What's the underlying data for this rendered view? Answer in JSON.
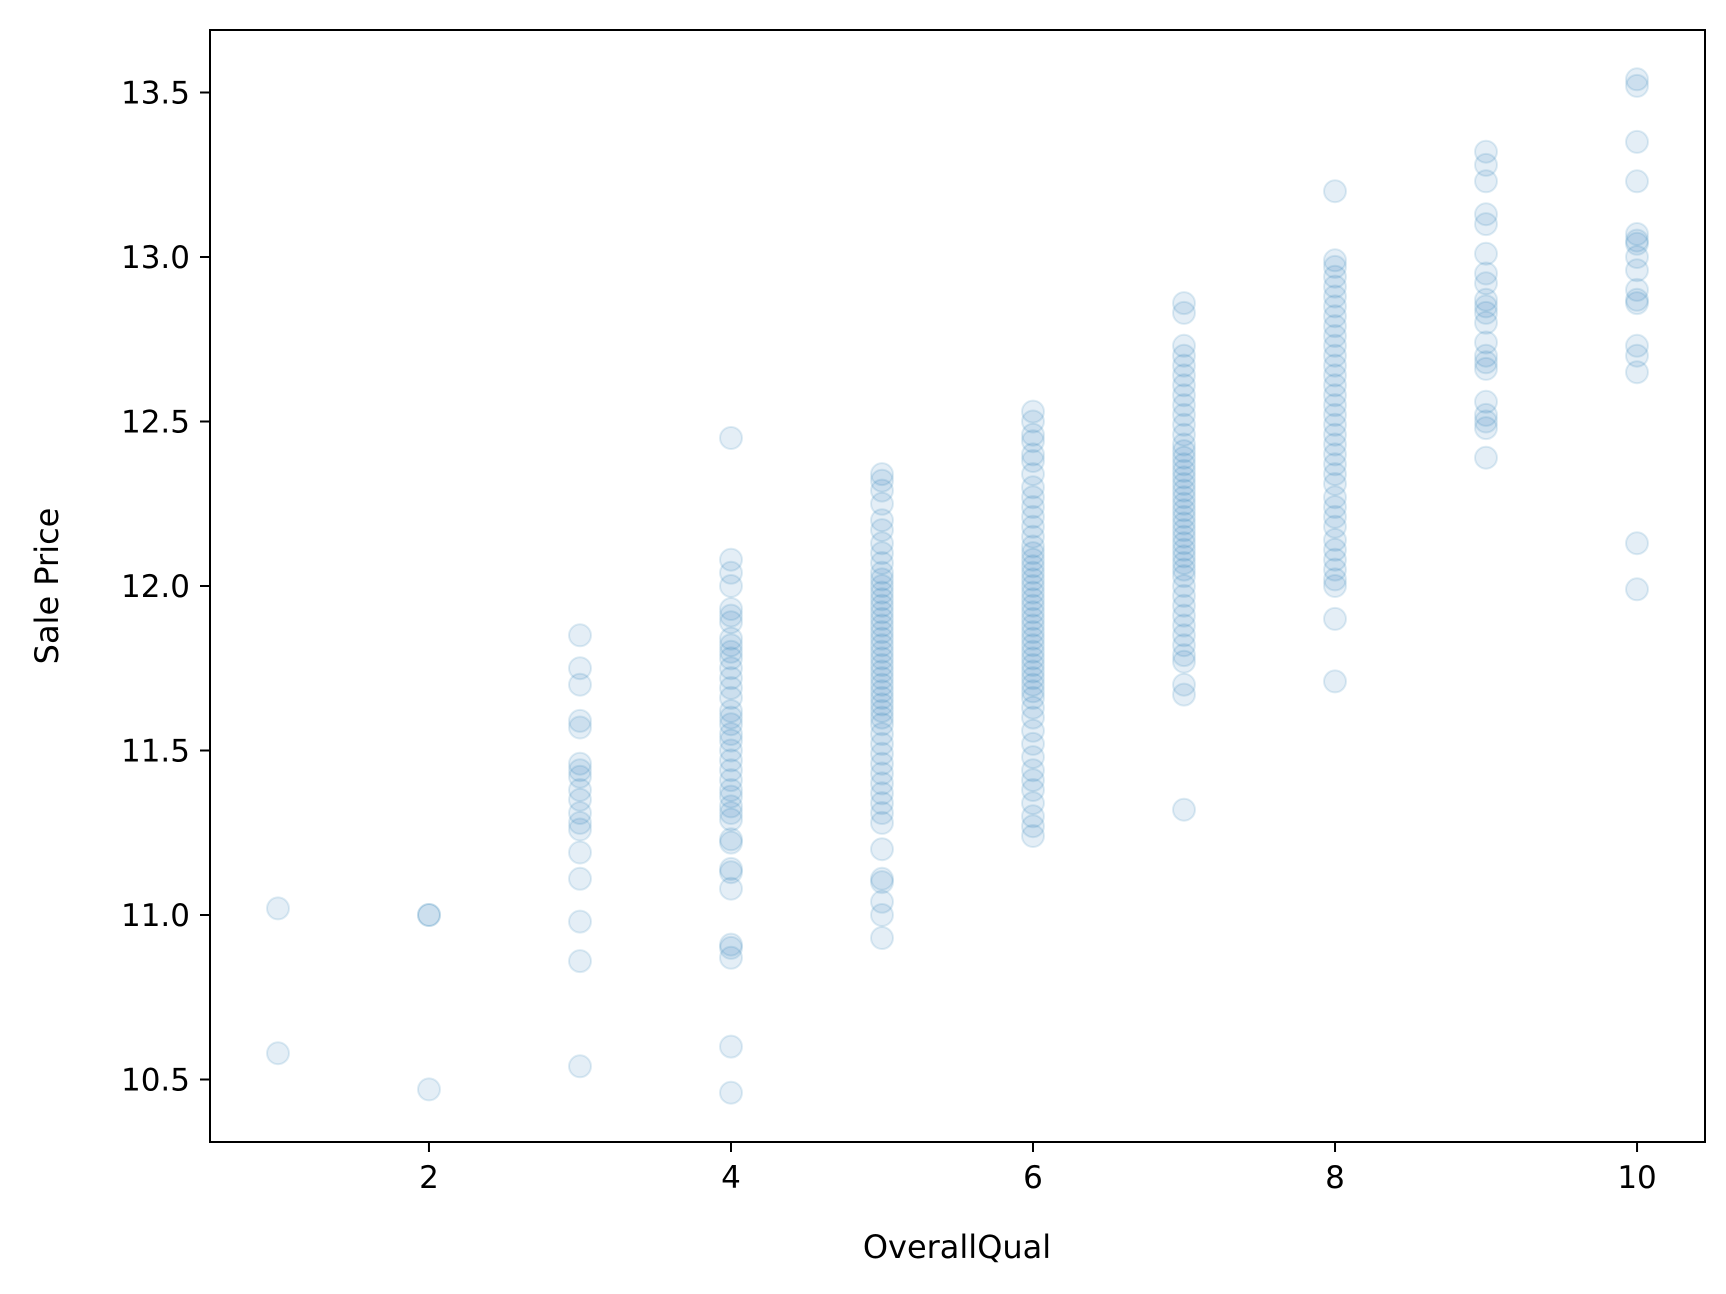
{
  "chart_data": {
    "type": "scatter",
    "title": "",
    "xlabel": "OverallQual",
    "ylabel": "Sale Price",
    "xlim": [
      0.55,
      10.45
    ],
    "ylim": [
      10.31,
      13.69
    ],
    "xticks": [
      2,
      4,
      6,
      8,
      10
    ],
    "yticks": [
      10.5,
      11.0,
      11.5,
      12.0,
      12.5,
      13.0,
      13.5
    ],
    "ytick_labels": [
      "10.5",
      "11.0",
      "11.5",
      "12.0",
      "12.5",
      "13.0",
      "13.5"
    ],
    "grid": false,
    "legend": false,
    "point_color": "#1f77b4",
    "point_alpha": 0.12,
    "series": [
      {
        "values_by_x": {
          "1": [
            11.02,
            10.58
          ],
          "2": [
            11.0,
            11.0,
            10.47
          ],
          "3": [
            11.85,
            11.75,
            11.7,
            11.59,
            11.57,
            11.46,
            11.44,
            11.42,
            11.38,
            11.35,
            11.31,
            11.28,
            11.26,
            11.19,
            11.11,
            10.98,
            10.86,
            10.54
          ],
          "4": [
            12.45,
            12.08,
            12.04,
            12.0,
            11.93,
            11.91,
            11.89,
            11.84,
            11.82,
            11.8,
            11.78,
            11.75,
            11.72,
            11.69,
            11.66,
            11.62,
            11.6,
            11.58,
            11.55,
            11.53,
            11.5,
            11.47,
            11.44,
            11.41,
            11.38,
            11.36,
            11.33,
            11.31,
            11.29,
            11.23,
            11.22,
            11.14,
            11.13,
            11.08,
            10.91,
            10.9,
            10.87,
            10.6,
            10.46
          ],
          "5": [
            12.34,
            12.32,
            12.29,
            12.25,
            12.2,
            12.17,
            12.13,
            12.1,
            12.07,
            12.04,
            12.02,
            12.0,
            11.98,
            11.96,
            11.94,
            11.92,
            11.9,
            11.88,
            11.86,
            11.84,
            11.82,
            11.8,
            11.78,
            11.76,
            11.74,
            11.72,
            11.7,
            11.68,
            11.66,
            11.64,
            11.62,
            11.6,
            11.58,
            11.55,
            11.52,
            11.49,
            11.46,
            11.43,
            11.4,
            11.37,
            11.34,
            11.31,
            11.28,
            11.2,
            11.11,
            11.1,
            11.04,
            11.0,
            10.93
          ],
          "6": [
            12.53,
            12.5,
            12.46,
            12.44,
            12.4,
            12.38,
            12.34,
            12.3,
            12.27,
            12.24,
            12.21,
            12.18,
            12.15,
            12.12,
            12.1,
            12.08,
            12.06,
            12.04,
            12.02,
            12.0,
            11.98,
            11.96,
            11.94,
            11.92,
            11.9,
            11.88,
            11.86,
            11.84,
            11.82,
            11.8,
            11.78,
            11.76,
            11.74,
            11.72,
            11.7,
            11.68,
            11.66,
            11.63,
            11.6,
            11.56,
            11.52,
            11.48,
            11.44,
            11.41,
            11.38,
            11.34,
            11.3,
            11.27,
            11.24
          ],
          "7": [
            12.86,
            12.83,
            12.73,
            12.7,
            12.67,
            12.64,
            12.61,
            12.58,
            12.55,
            12.52,
            12.49,
            12.46,
            12.43,
            12.41,
            12.39,
            12.37,
            12.35,
            12.33,
            12.31,
            12.29,
            12.27,
            12.25,
            12.23,
            12.21,
            12.19,
            12.17,
            12.15,
            12.13,
            12.11,
            12.09,
            12.07,
            12.05,
            12.03,
            12.0,
            11.97,
            11.94,
            11.91,
            11.88,
            11.85,
            11.82,
            11.79,
            11.77,
            11.7,
            11.67,
            11.32
          ],
          "8": [
            13.2,
            12.99,
            12.97,
            12.94,
            12.91,
            12.88,
            12.85,
            12.82,
            12.79,
            12.76,
            12.73,
            12.7,
            12.67,
            12.64,
            12.61,
            12.58,
            12.55,
            12.52,
            12.49,
            12.46,
            12.43,
            12.4,
            12.37,
            12.34,
            12.31,
            12.27,
            12.24,
            12.21,
            12.18,
            12.14,
            12.11,
            12.08,
            12.05,
            12.02,
            12.0,
            11.9,
            11.71
          ],
          "9": [
            13.32,
            13.28,
            13.23,
            13.13,
            13.1,
            13.01,
            12.95,
            12.92,
            12.87,
            12.85,
            12.83,
            12.8,
            12.74,
            12.7,
            12.68,
            12.66,
            12.56,
            12.52,
            12.5,
            12.48,
            12.39
          ],
          "10": [
            13.54,
            13.52,
            13.35,
            13.23,
            13.07,
            13.05,
            13.04,
            13.0,
            12.96,
            12.9,
            12.87,
            12.86,
            12.73,
            12.7,
            12.65,
            12.13,
            11.99
          ]
        }
      }
    ]
  }
}
